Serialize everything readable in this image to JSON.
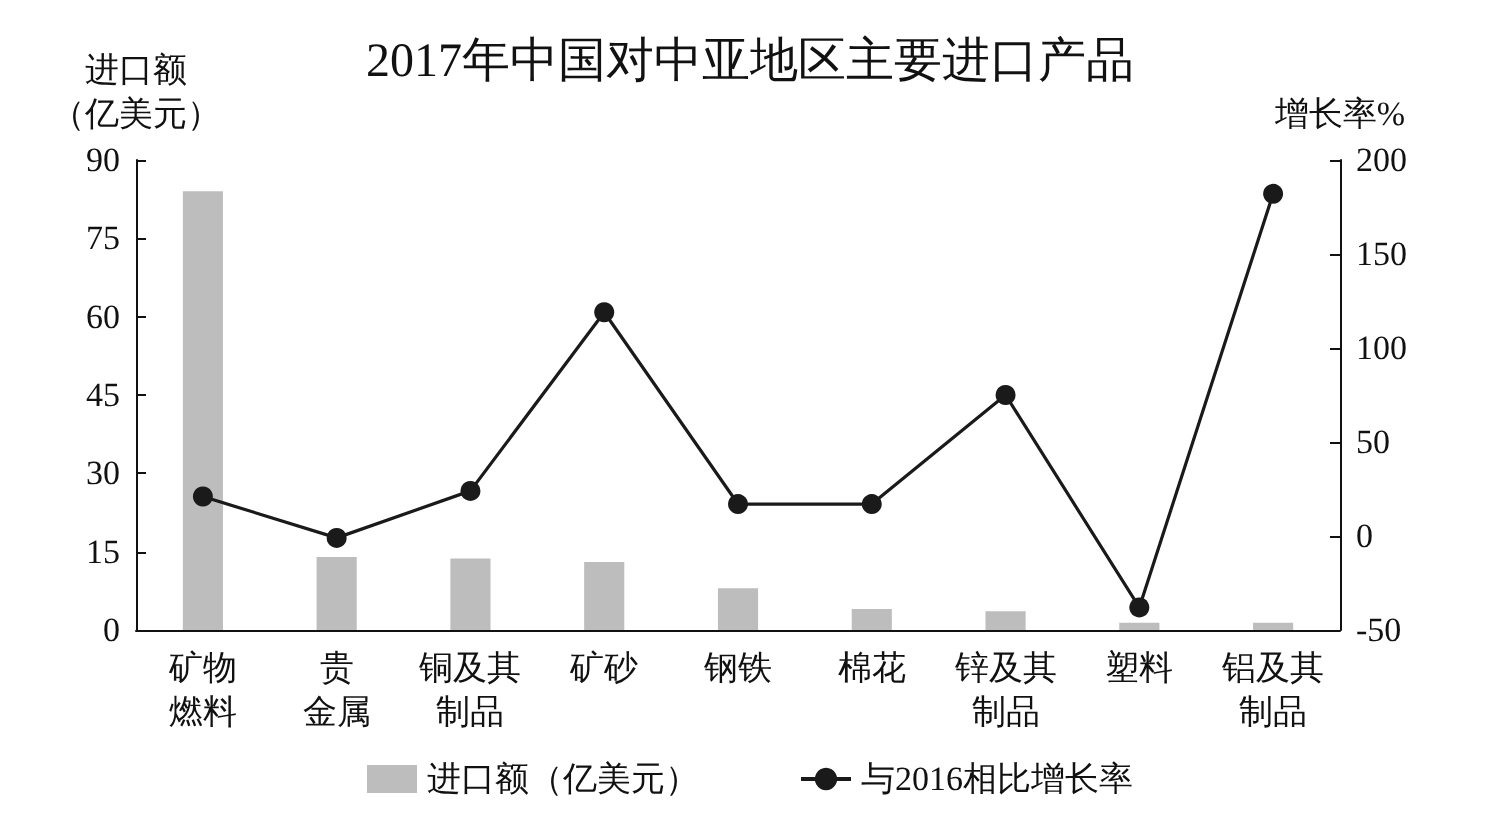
{
  "chart_data": {
    "type": "bar",
    "title": "2017年中国对中亚地区主要进口产品",
    "ylabel": "进口额（亿美元）",
    "y2label": "增长率%",
    "categories": [
      "矿物燃料",
      "贵金属",
      "铜及其制品",
      "矿砂",
      "钢铁",
      "棉花",
      "锌及其制品",
      "塑料",
      "铝及其制品"
    ],
    "series": [
      {
        "name": "进口额（亿美元）",
        "color": "#bdbdbd",
        "values": [
          84,
          14,
          13.7,
          13,
          8,
          4,
          3.6,
          1.4,
          1.4
        ]
      },
      {
        "name": "与2016相比增长率",
        "type": "line",
        "axis": "y2",
        "color": "#1a1a1a",
        "marker": "circle",
        "values": [
          21,
          -1,
          24,
          119,
          17,
          17,
          75,
          -38,
          182
        ]
      }
    ],
    "ylim": [
      0,
      90
    ],
    "yticks": [
      0,
      15,
      30,
      45,
      60,
      75,
      90
    ],
    "y2lim": [
      -50,
      200
    ],
    "y2ticks": [
      -50,
      0,
      50,
      100,
      150,
      200
    ],
    "grid": false,
    "legend": "bottom"
  }
}
